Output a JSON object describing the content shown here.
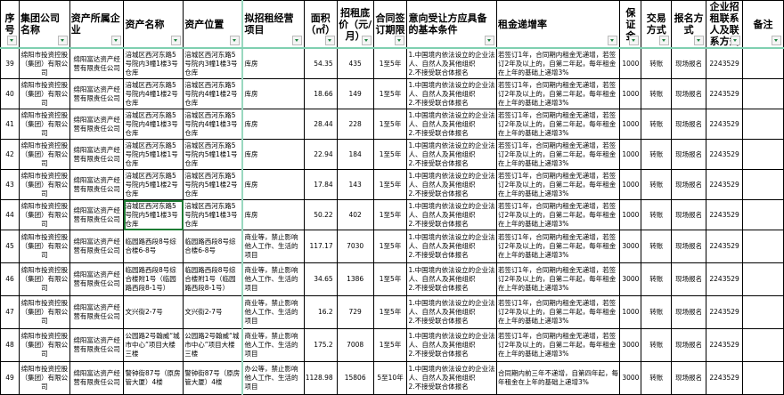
{
  "headers": [
    "序号",
    "集团公司名称",
    "资产所属企业",
    "资产名称",
    "资产位置",
    "拟招租经营项目",
    "面积（㎡）",
    "招租底价（元/月）",
    "合同签订期限",
    "意向受让方应具备的基本条件",
    "租金递增率",
    "保证金",
    "交易方式",
    "报名方式",
    "企业招租联系人及联系方式",
    "备注"
  ],
  "rows": [
    {
      "no": "39",
      "group": "绵阳市投资控股（集团）有限公司",
      "company": "绵阳富达资产经营有限责任公司",
      "name": "涪城区西河东路5号院内3幢1楼3号仓库",
      "location": "涪城区西河东路5号院内3幢1楼3号仓库",
      "use": "库房",
      "area": "54.35",
      "price": "435",
      "term": "1至5年",
      "cond": "1.中国境内依法设立的企业法人、自然人及其他组织\n2.不接受联合体报名",
      "rate": "若签订1年，合同期内租金无递增，若签订2年及以上的，自第二年起，每年租金在上年的基础上递增3%",
      "deposit": "1000",
      "trade": "转账",
      "signup": "现场报名",
      "contact": "2243529",
      "note": ""
    },
    {
      "no": "40",
      "group": "绵阳市投资控股（集团）有限公司",
      "company": "绵阳富达资产经营有限责任公司",
      "name": "涪城区西河东路5号院内4幢1楼2号仓库",
      "location": "涪城区西河东路5号院内4幢1楼2号仓库",
      "use": "库房",
      "area": "18.66",
      "price": "149",
      "term": "1至5年",
      "cond": "1.中国境内依法设立的企业法人、自然人及其他组织\n2.不接受联合体报名",
      "rate": "若签订1年，合同期内租金无递增，若签订2年及以上的，自第二年起，每年租金在上年的基础上递增3%",
      "deposit": "1000",
      "trade": "转账",
      "signup": "现场报名",
      "contact": "2243529",
      "note": ""
    },
    {
      "no": "41",
      "group": "绵阳市投资控股（集团）有限公司",
      "company": "绵阳富达资产经营有限责任公司",
      "name": "涪城区西河东路5号院内4幢1楼3号仓库",
      "location": "涪城区西河东路5号院内4幢1楼3号仓库",
      "use": "库房",
      "area": "28.44",
      "price": "228",
      "term": "1至5年",
      "cond": "1.中国境内依法设立的企业法人、自然人及其他组织\n2.不接受联合体报名",
      "rate": "若签订1年，合同期内租金无递增，若签订2年及以上的，自第二年起，每年租金在上年的基础上递增3%",
      "deposit": "1000",
      "trade": "转账",
      "signup": "现场报名",
      "contact": "2243529",
      "note": ""
    },
    {
      "no": "42",
      "group": "绵阳市投资控股（集团）有限公司",
      "company": "绵阳富达资产经营有限责任公司",
      "name": "涪城区西河东路5号院内5幢1楼1号仓库",
      "location": "涪城区西河东路5号院内5幢1楼1号仓库",
      "use": "库房",
      "area": "22.94",
      "price": "184",
      "term": "1至5年",
      "cond": "1.中国境内依法设立的企业法人、自然人及其他组织\n2.不接受联合体报名",
      "rate": "若签订1年，合同期内租金无递增，若签订2年及以上的，自第二年起，每年租金在上年的基础上递增3%",
      "deposit": "1000",
      "trade": "转账",
      "signup": "现场报名",
      "contact": "2243529",
      "note": ""
    },
    {
      "no": "43",
      "group": "绵阳市投资控股（集团）有限公司",
      "company": "绵阳富达资产经营有限责任公司",
      "name": "涪城区西河东路5号院内5幢1楼2号仓库",
      "location": "涪城区西河东路5号院内5幢1楼2号仓库",
      "use": "库房",
      "area": "17.84",
      "price": "143",
      "term": "1至5年",
      "cond": "1.中国境内依法设立的企业法人、自然人及其他组织\n2.不接受联合体报名",
      "rate": "若签订1年，合同期内租金无递增，若签订2年及以上的，自第二年起，每年租金在上年的基础上递增3%",
      "deposit": "1000",
      "trade": "转账",
      "signup": "现场报名",
      "contact": "2243529",
      "note": ""
    },
    {
      "no": "44",
      "group": "绵阳市投资控股（集团）有限公司",
      "company": "绵阳富达资产经营有限责任公司",
      "name": "涪城区西河东路5号院内5幢1楼3号仓库",
      "location": "涪城区西河东路5号院内5幢1楼3号仓库",
      "use": "库房",
      "area": "50.22",
      "price": "402",
      "term": "1至5年",
      "cond": "1.中国境内依法设立的企业法人、自然人及其他组织\n2.不接受联合体报名",
      "rate": "若签订1年，合同期内租金无递增，若签订2年及以上的，自第二年起，每年租金在上年的基础上递增3%",
      "deposit": "1000",
      "trade": "转账",
      "signup": "现场报名",
      "contact": "2243529",
      "note": ""
    },
    {
      "no": "45",
      "group": "绵阳市投资控股（集团）有限公司",
      "company": "绵阳富达资产经营有限责任公司",
      "name": "临园路西段8号综合楼6-8号",
      "location": "临园路西段8号综合楼6-8号",
      "use": "商业等，禁止影响他人工作、生活的项目",
      "area": "117.17",
      "price": "7030",
      "term": "1至5年",
      "cond": "1.中国境内依法设立的企业法人、自然人及其他组织\n2.不接受联合体报名",
      "rate": "若签订1年，合同期内租金无递增，若签订2年及以上的，自第二年起，每年租金在上年的基础上递增3%",
      "deposit": "3000",
      "trade": "转账",
      "signup": "现场报名",
      "contact": "2243529",
      "note": ""
    },
    {
      "no": "46",
      "group": "绵阳市投资控股（集团）有限公司",
      "company": "绵阳富达资产经营有限责任公司",
      "name": "临园路西段8号综合楼附1号（临园路西段8-1号）",
      "location": "临园路西段8号综合楼附1号（临园路西段8-1号）",
      "use": "商业等，禁止影响他人工作、生活的项目",
      "area": "34.65",
      "price": "1386",
      "term": "1至5年",
      "cond": "1.中国境内依法设立的企业法人、自然人及其他组织\n2.不接受联合体报名",
      "rate": "若签订1年，合同期内租金无递增，若签订2年及以上的，自第二年起，每年租金在上年的基础上递增3%",
      "deposit": "3000",
      "trade": "转账",
      "signup": "现场报名",
      "contact": "2243529",
      "note": ""
    },
    {
      "no": "47",
      "group": "绵阳市投资控股（集团）有限公司",
      "company": "绵阳富达资产经营有限责任公司",
      "name": "文兴街2-7号",
      "location": "文兴街2-7号",
      "use": "商业等，禁止影响他人工作、生活的项目",
      "area": "16.2",
      "price": "729",
      "term": "1至5年",
      "cond": "1.中国境内依法设立的企业法人、自然人及其他组织\n2.不接受联合体报名",
      "rate": "若签订1年，合同期内租金无递增，若签订2年及以上的，自第二年起，每年租金在上年的基础上递增3%",
      "deposit": "1000",
      "trade": "转账",
      "signup": "现场报名",
      "contact": "2243529",
      "note": ""
    },
    {
      "no": "48",
      "group": "绵阳市投资控股（集团）有限公司",
      "company": "绵阳富达资产经营有限责任公司",
      "name": "公园路2号翰威“城市中心”项目大楼三楼",
      "location": "公园路2号翰威“城市中心”项目大楼三楼",
      "use": "商业等，禁止影响他人工作、生活的项目",
      "area": "175.2",
      "price": "7008",
      "term": "1至5年",
      "cond": "1.中国境内依法设立的企业法人、自然人及其他组织\n2.不接受联合体报名",
      "rate": "若签订1年，合同期内租金无递增，若签订2年及以上的，自第二年起，每年租金在上年的基础上递增3%",
      "deposit": "3000",
      "trade": "转账",
      "signup": "现场报名",
      "contact": "2243529",
      "note": ""
    },
    {
      "no": "49",
      "group": "绵阳市投资控股（集团）有限公司",
      "company": "绵阳富达资产经营有限责任公司",
      "name": "警钟街87号（原房管大厦）4楼",
      "location": "警钟街87号（原房管大厦）4楼",
      "use": "办公等，禁止影响他人工作、生活的项目",
      "area": "1128.98",
      "price": "15806",
      "term": "5至10年",
      "cond": "1.中国境内依法设立的企业法人、自然人及其他组织\n2.不接受联合体报名",
      "rate": "合同期内前三年不递增，自第四年起，每年租金在上年的基础上递增3%",
      "deposit": "3000",
      "trade": "转账",
      "signup": "现场报名",
      "contact": "2243529",
      "note": ""
    }
  ],
  "selected_row": "44",
  "colors": {
    "border": "#000000",
    "frozen_line": "#7fd0b0",
    "selection": "#1e7b34"
  }
}
